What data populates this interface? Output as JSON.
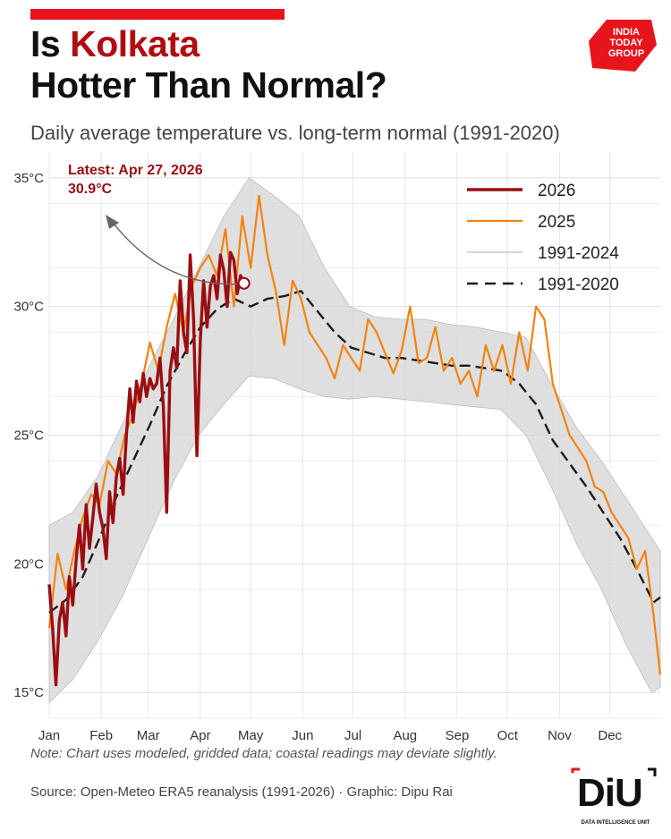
{
  "header": {
    "title_part1": "Is ",
    "title_highlight": "Kolkata",
    "title_line2": "Hotter Than Normal?",
    "subtitle": "Daily average temperature vs. long-term normal (1991-2020)"
  },
  "logo": {
    "line1": "INDIA",
    "line2": "TODAY",
    "line3": "GROUP",
    "color": "#e8141b"
  },
  "annotation": {
    "line1": "Latest: Apr 27, 2026",
    "line2": "30.9°C",
    "color": "#9b0d12"
  },
  "footer": {
    "note": "Note: Chart uses modeled, gridded data; coastal readings may deviate slightly.",
    "source": "Source: Open-Meteo ERA5 reanalysis (1991-2026) · Graphic: Dipu Rai",
    "diu_logo": "DiU",
    "diu_sub": "DATA INTELLIGENCE UNIT"
  },
  "chart_data": {
    "type": "line",
    "x_unit": "day of year",
    "xlim": [
      1,
      365
    ],
    "ylim": [
      14,
      36
    ],
    "grid": true,
    "legend_position": "top-right",
    "x_ticks": [
      {
        "label": "Jan",
        "day": 1
      },
      {
        "label": "Feb",
        "day": 32
      },
      {
        "label": "Mar",
        "day": 60
      },
      {
        "label": "Apr",
        "day": 91
      },
      {
        "label": "May",
        "day": 121
      },
      {
        "label": "Jun",
        "day": 152
      },
      {
        "label": "Jul",
        "day": 182
      },
      {
        "label": "Aug",
        "day": 213
      },
      {
        "label": "Sep",
        "day": 244
      },
      {
        "label": "Oct",
        "day": 274
      },
      {
        "label": "Nov",
        "day": 305
      },
      {
        "label": "Dec",
        "day": 335
      }
    ],
    "y_ticks": [
      {
        "label": "15°C",
        "value": 15
      },
      {
        "label": "20°C",
        "value": 20
      },
      {
        "label": "25°C",
        "value": 25
      },
      {
        "label": "30°C",
        "value": 30
      },
      {
        "label": "35°C",
        "value": 35
      }
    ],
    "latest_point": {
      "day": 117,
      "value": 30.9
    },
    "series": [
      {
        "name": "2026",
        "color": "#9b0d12",
        "x": [
          1,
          3,
          5,
          7,
          9,
          11,
          13,
          15,
          17,
          19,
          21,
          23,
          25,
          27,
          29,
          31,
          33,
          35,
          37,
          39,
          41,
          43,
          45,
          47,
          49,
          51,
          53,
          55,
          57,
          59,
          61,
          63,
          65,
          67,
          69,
          71,
          73,
          75,
          77,
          79,
          81,
          83,
          85,
          87,
          89,
          91,
          93,
          95,
          97,
          99,
          101,
          103,
          105,
          107,
          109,
          111,
          113,
          115,
          117
        ],
        "values": [
          19.2,
          17.5,
          15.3,
          17.8,
          18.5,
          17.2,
          19.5,
          18.4,
          20.1,
          21.5,
          19.8,
          22.3,
          20.6,
          21.8,
          23.1,
          22.0,
          21.4,
          20.2,
          22.8,
          21.6,
          23.4,
          24.1,
          22.7,
          25.0,
          26.8,
          25.5,
          27.1,
          26.3,
          27.4,
          26.5,
          27.2,
          26.8,
          27.0,
          28.0,
          26.1,
          22.0,
          27.5,
          28.4,
          27.6,
          31.0,
          29.0,
          28.2,
          32.0,
          29.5,
          24.2,
          28.7,
          31.0,
          29.2,
          30.8,
          31.2,
          30.3,
          32.0,
          31.4,
          30.0,
          32.1,
          31.8,
          30.5,
          31.2,
          30.9
        ]
      },
      {
        "name": "2025",
        "color": "#f5820f",
        "x": [
          1,
          6,
          11,
          16,
          21,
          26,
          31,
          36,
          41,
          46,
          51,
          56,
          61,
          66,
          71,
          76,
          81,
          86,
          91,
          96,
          101,
          106,
          111,
          116,
          121,
          126,
          131,
          136,
          141,
          146,
          151,
          156,
          161,
          166,
          171,
          176,
          181,
          186,
          191,
          196,
          201,
          206,
          211,
          216,
          221,
          226,
          231,
          236,
          241,
          246,
          251,
          256,
          261,
          266,
          271,
          276,
          281,
          286,
          291,
          296,
          301,
          306,
          311,
          316,
          321,
          326,
          331,
          336,
          341,
          346,
          351,
          356,
          361,
          365
        ],
        "values": [
          17.5,
          20.4,
          19.0,
          20.5,
          21.8,
          22.7,
          22.3,
          24.0,
          23.5,
          25.0,
          25.8,
          27.0,
          28.6,
          27.5,
          29.2,
          30.5,
          29.0,
          30.8,
          31.5,
          32.0,
          31.2,
          33.0,
          30.0,
          33.5,
          31.5,
          34.3,
          32.0,
          30.6,
          28.5,
          31.0,
          30.3,
          29.0,
          28.5,
          28.0,
          27.2,
          28.5,
          28.0,
          27.5,
          29.5,
          29.0,
          28.2,
          27.4,
          28.3,
          30.0,
          27.8,
          28.0,
          29.2,
          27.5,
          28.0,
          27.0,
          27.5,
          26.5,
          28.5,
          27.5,
          28.5,
          27.0,
          29.0,
          27.5,
          30.0,
          29.5,
          27.0,
          26.0,
          25.0,
          24.5,
          24.0,
          23.0,
          22.8,
          22.0,
          21.5,
          21.0,
          19.8,
          20.5,
          18.0,
          15.7
        ]
      },
      {
        "name": "1991-2020",
        "color": "#1a1a1a",
        "x": [
          1,
          11,
          21,
          31,
          41,
          51,
          61,
          71,
          81,
          91,
          101,
          111,
          121,
          131,
          141,
          151,
          161,
          171,
          181,
          191,
          201,
          211,
          221,
          231,
          241,
          251,
          261,
          271,
          281,
          291,
          301,
          311,
          321,
          331,
          341,
          351,
          361,
          365
        ],
        "values": [
          18.1,
          18.6,
          19.5,
          21.0,
          22.6,
          24.0,
          25.4,
          26.9,
          28.1,
          29.2,
          29.9,
          30.3,
          30.0,
          30.3,
          30.4,
          30.6,
          29.8,
          29.0,
          28.4,
          28.2,
          28.0,
          28.0,
          27.9,
          27.8,
          27.7,
          27.7,
          27.6,
          27.5,
          27.0,
          26.2,
          24.8,
          23.9,
          23.0,
          22.0,
          21.0,
          19.8,
          18.5,
          18.7
        ]
      },
      {
        "name": "1991-2024",
        "color": "#bdbdbd",
        "band_x": [
          1,
          15,
          30,
          45,
          60,
          75,
          90,
          105,
          120,
          135,
          150,
          165,
          180,
          195,
          210,
          225,
          240,
          255,
          270,
          285,
          300,
          315,
          330,
          345,
          360,
          365
        ],
        "band_low": [
          14.6,
          15.5,
          17.0,
          18.8,
          21.0,
          23.2,
          25.0,
          26.2,
          27.3,
          27.2,
          26.8,
          26.5,
          26.4,
          26.5,
          26.4,
          26.3,
          26.2,
          26.1,
          26.0,
          25.0,
          23.0,
          20.8,
          19.0,
          16.8,
          15.0,
          15.2
        ],
        "band_high": [
          21.5,
          22.0,
          23.4,
          25.5,
          27.6,
          29.5,
          31.5,
          33.5,
          35.0,
          34.3,
          33.5,
          31.5,
          30.0,
          29.6,
          29.5,
          29.5,
          29.3,
          29.2,
          29.0,
          28.8,
          27.0,
          25.3,
          24.0,
          22.5,
          21.0,
          20.5
        ]
      }
    ]
  }
}
